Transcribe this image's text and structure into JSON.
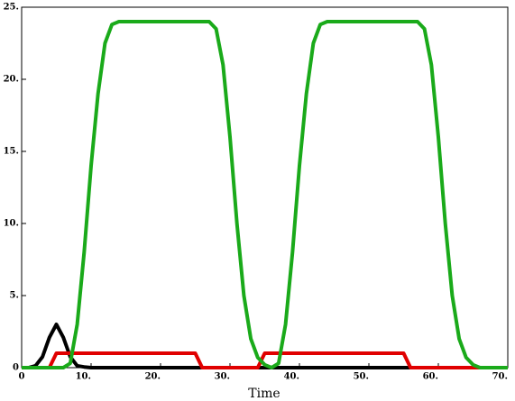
{
  "chart_data": {
    "type": "line",
    "x_label": "Time",
    "x": [
      0,
      1,
      2,
      3,
      4,
      5,
      6,
      7,
      8,
      9,
      10,
      11,
      12,
      13,
      14,
      15,
      16,
      17,
      18,
      19,
      20,
      21,
      22,
      23,
      24,
      25,
      26,
      27,
      28,
      29,
      30,
      31,
      32,
      33,
      34,
      35,
      36,
      37,
      38,
      39,
      40,
      41,
      42,
      43,
      44,
      45,
      46,
      47,
      48,
      49,
      50,
      51,
      52,
      53,
      54,
      55,
      56,
      57,
      58,
      59,
      60,
      61,
      62,
      63,
      64,
      65,
      66,
      67,
      68,
      69,
      70
    ],
    "series": [
      {
        "color": "#000000",
        "values": [
          0,
          0,
          0.13,
          0.75,
          2.1,
          3,
          2.1,
          0.75,
          0.13,
          0.05,
          0,
          0,
          0,
          0,
          0,
          0,
          0,
          0,
          0,
          0,
          0,
          0,
          0,
          0,
          0,
          0,
          0,
          0,
          0,
          0,
          0,
          0,
          0,
          0,
          0,
          0,
          0,
          0,
          0,
          0,
          0,
          0,
          0,
          0,
          0,
          0,
          0,
          0,
          0,
          0,
          0,
          0,
          0,
          0,
          0,
          0,
          0,
          0,
          0,
          0,
          0,
          0,
          0,
          0,
          0,
          0,
          0,
          0,
          0,
          0,
          0
        ]
      },
      {
        "color": "#e00000",
        "values": [
          0,
          0,
          0,
          0,
          0,
          1,
          1,
          1,
          1,
          1,
          1,
          1,
          1,
          1,
          1,
          1,
          1,
          1,
          1,
          1,
          1,
          1,
          1,
          1,
          1,
          1,
          0,
          0,
          0,
          0,
          0,
          0,
          0,
          0,
          0,
          1,
          1,
          1,
          1,
          1,
          1,
          1,
          1,
          1,
          1,
          1,
          1,
          1,
          1,
          1,
          1,
          1,
          1,
          1,
          1,
          1,
          0,
          0,
          0,
          0,
          0,
          0,
          0,
          0,
          0,
          0,
          0,
          0,
          0,
          0,
          0
        ]
      },
      {
        "color": "#1aaa1a",
        "values": [
          0,
          0,
          0,
          0,
          0,
          0,
          0,
          0.3,
          3,
          8,
          14,
          19,
          22.5,
          23.8,
          24,
          24,
          24,
          24,
          24,
          24,
          24,
          24,
          24,
          24,
          24,
          24,
          24,
          24,
          23.5,
          21,
          16,
          10,
          5,
          2,
          0.7,
          0.2,
          0,
          0.3,
          3,
          8,
          14,
          19,
          22.5,
          23.8,
          24,
          24,
          24,
          24,
          24,
          24,
          24,
          24,
          24,
          24,
          24,
          24,
          24,
          24,
          23.5,
          21,
          16,
          10,
          5,
          2,
          0.7,
          0.2,
          0,
          0,
          0,
          0,
          0
        ]
      }
    ],
    "xlim": [
      0,
      70
    ],
    "xticks": [
      0,
      {
        "value": 10,
        "label": "10."
      },
      {
        "value": 20,
        "label": "20."
      },
      {
        "value": 30,
        "label": "30."
      },
      {
        "value": 40,
        "label": "40."
      },
      {
        "value": 50,
        "label": "50."
      },
      {
        "value": 60,
        "label": "60."
      },
      {
        "value": 70,
        "label": "70."
      }
    ],
    "ylim": [
      0,
      25
    ],
    "yticks": [
      0,
      {
        "value": 5,
        "label": "5."
      },
      {
        "value": 10,
        "label": "10."
      },
      {
        "value": 15,
        "label": "15."
      },
      {
        "value": 20,
        "label": "20."
      },
      {
        "value": 25,
        "label": "25."
      }
    ]
  }
}
